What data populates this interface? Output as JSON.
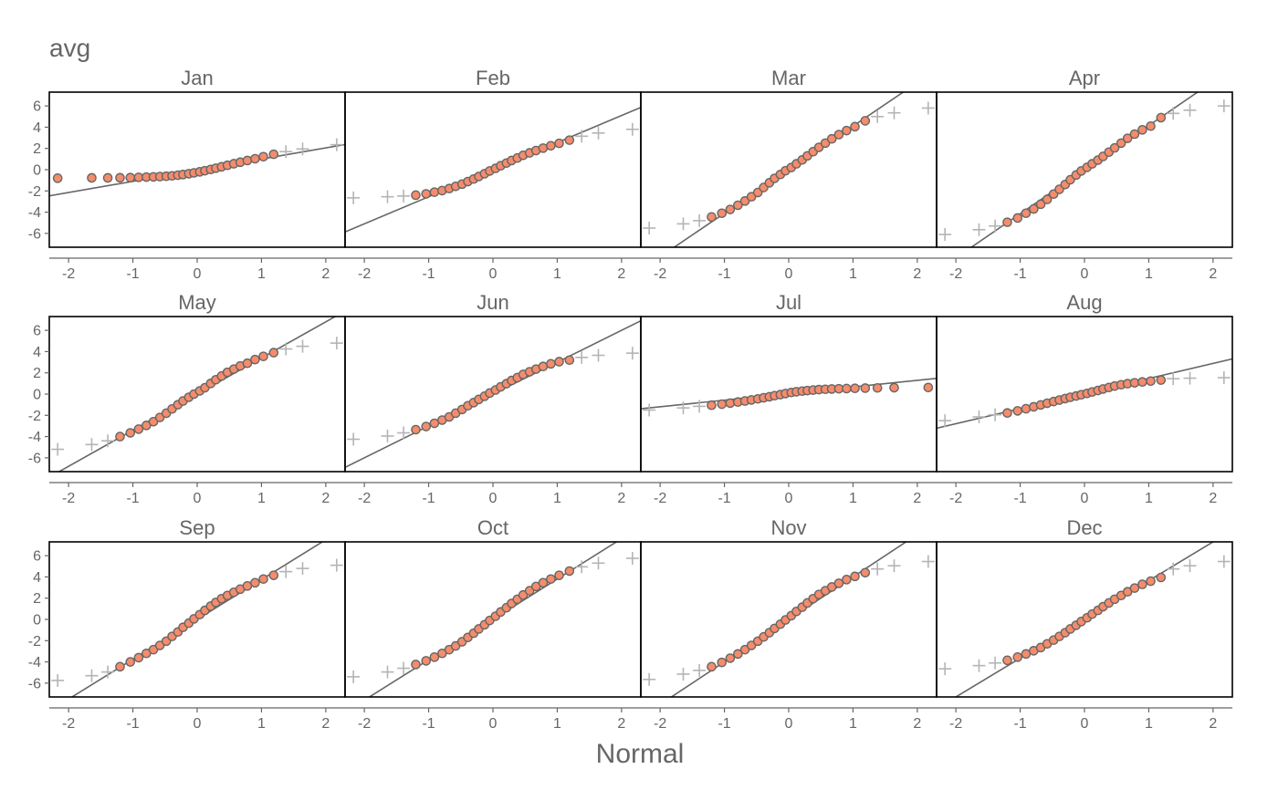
{
  "title": "avg",
  "xlabel": "Normal",
  "chart_data": {
    "type": "scatter",
    "title": "avg",
    "xlabel": "Normal",
    "ylabel": "",
    "xlim": [
      -2.3,
      2.3
    ],
    "ylim": [
      -7.3,
      7.3
    ],
    "x_ticks": [
      "-2",
      "-1",
      "0",
      "1",
      "2"
    ],
    "y_ticks": [
      "-6",
      "-4",
      "-2",
      "0",
      "2",
      "4",
      "6"
    ],
    "grid": false,
    "theoretical_quantiles": [
      -2.17,
      -1.64,
      -1.39,
      -1.2,
      -1.04,
      -0.91,
      -0.79,
      -0.68,
      -0.58,
      -0.48,
      -0.39,
      -0.3,
      -0.22,
      -0.13,
      -0.05,
      0.04,
      0.12,
      0.21,
      0.29,
      0.38,
      0.47,
      0.57,
      0.67,
      0.78,
      0.9,
      1.03,
      1.19,
      1.38,
      1.64,
      2.17
    ],
    "colors": {
      "point_fill": "#f58c6c",
      "point_stroke": "#666666",
      "cross": "#b4b4b4",
      "line": "#666666"
    },
    "panels": [
      {
        "name": "Jan",
        "line": {
          "slope": 1.05,
          "intercept": -0.05
        },
        "out_low": 0,
        "out_high": 3,
        "y": [
          -0.8,
          -0.77,
          -0.77,
          -0.76,
          -0.75,
          -0.72,
          -0.7,
          -0.68,
          -0.65,
          -0.62,
          -0.58,
          -0.52,
          -0.46,
          -0.38,
          -0.3,
          -0.2,
          -0.1,
          0.02,
          0.14,
          0.27,
          0.41,
          0.56,
          0.7,
          0.86,
          1.03,
          1.22,
          1.45,
          1.7,
          1.95,
          2.35
        ]
      },
      {
        "name": "Feb",
        "line": {
          "slope": 2.55,
          "intercept": 0.0
        },
        "out_low": 3,
        "out_high": 3,
        "y": [
          -2.65,
          -2.55,
          -2.48,
          -2.4,
          -2.28,
          -2.12,
          -1.97,
          -1.78,
          -1.57,
          -1.36,
          -1.12,
          -0.88,
          -0.64,
          -0.38,
          -0.12,
          0.12,
          0.37,
          0.62,
          0.86,
          1.1,
          1.35,
          1.58,
          1.8,
          2.03,
          2.25,
          2.48,
          2.78,
          3.15,
          3.45,
          3.8
        ]
      },
      {
        "name": "Mar",
        "line": {
          "slope": 4.1,
          "intercept": 0.0
        },
        "out_low": 3,
        "out_high": 3,
        "y": [
          -5.5,
          -5.1,
          -4.8,
          -4.45,
          -4.1,
          -3.75,
          -3.35,
          -2.95,
          -2.55,
          -2.15,
          -1.68,
          -1.23,
          -0.82,
          -0.45,
          -0.1,
          0.2,
          0.55,
          0.92,
          1.3,
          1.7,
          2.1,
          2.5,
          2.9,
          3.3,
          3.68,
          4.05,
          4.6,
          5.0,
          5.35,
          5.8
        ]
      },
      {
        "name": "Apr",
        "line": {
          "slope": 4.15,
          "intercept": 0.0
        },
        "out_low": 3,
        "out_high": 3,
        "y": [
          -6.1,
          -5.65,
          -5.3,
          -4.95,
          -4.55,
          -4.1,
          -3.7,
          -3.25,
          -2.8,
          -2.3,
          -1.85,
          -1.4,
          -0.95,
          -0.5,
          -0.12,
          0.22,
          0.55,
          0.9,
          1.25,
          1.65,
          2.05,
          2.5,
          2.95,
          3.35,
          3.75,
          4.1,
          4.9,
          5.3,
          5.6,
          6.0
        ]
      },
      {
        "name": "May",
        "line": {
          "slope": 3.4,
          "intercept": 0.0
        },
        "out_low": 3,
        "out_high": 3,
        "y": [
          -5.2,
          -4.75,
          -4.4,
          -4.0,
          -3.65,
          -3.3,
          -2.95,
          -2.6,
          -2.2,
          -1.8,
          -1.4,
          -1.0,
          -0.65,
          -0.3,
          0.0,
          0.3,
          0.6,
          1.0,
          1.35,
          1.7,
          2.05,
          2.35,
          2.65,
          2.9,
          3.25,
          3.55,
          3.9,
          4.25,
          4.5,
          4.8
        ]
      },
      {
        "name": "Jun",
        "line": {
          "slope": 3.0,
          "intercept": 0.0
        },
        "out_low": 3,
        "out_high": 3,
        "y": [
          -4.25,
          -3.95,
          -3.65,
          -3.35,
          -3.05,
          -2.75,
          -2.45,
          -2.15,
          -1.8,
          -1.45,
          -1.1,
          -0.8,
          -0.5,
          -0.2,
          0.1,
          0.38,
          0.68,
          0.98,
          1.28,
          1.55,
          1.85,
          2.1,
          2.35,
          2.6,
          2.85,
          3.05,
          3.2,
          3.45,
          3.65,
          3.85
        ]
      },
      {
        "name": "Jul",
        "line": {
          "slope": 0.62,
          "intercept": 0.05
        },
        "out_low": 3,
        "out_high": 0,
        "y": [
          -1.5,
          -1.3,
          -1.15,
          -1.05,
          -0.95,
          -0.85,
          -0.75,
          -0.65,
          -0.55,
          -0.45,
          -0.35,
          -0.25,
          -0.15,
          -0.05,
          0.05,
          0.15,
          0.22,
          0.28,
          0.33,
          0.38,
          0.42,
          0.45,
          0.48,
          0.5,
          0.52,
          0.54,
          0.56,
          0.58,
          0.6,
          0.62
        ]
      },
      {
        "name": "Aug",
        "line": {
          "slope": 1.42,
          "intercept": 0.05
        },
        "out_low": 3,
        "out_high": 3,
        "y": [
          -2.5,
          -2.15,
          -1.95,
          -1.78,
          -1.58,
          -1.38,
          -1.2,
          -1.02,
          -0.86,
          -0.7,
          -0.56,
          -0.42,
          -0.3,
          -0.18,
          -0.06,
          0.06,
          0.2,
          0.34,
          0.48,
          0.62,
          0.76,
          0.88,
          0.98,
          1.06,
          1.14,
          1.22,
          1.32,
          1.45,
          1.5,
          1.55
        ]
      },
      {
        "name": "Sep",
        "line": {
          "slope": 3.75,
          "intercept": 0.0
        },
        "out_low": 3,
        "out_high": 3,
        "y": [
          -5.75,
          -5.3,
          -4.95,
          -4.45,
          -4.0,
          -3.6,
          -3.2,
          -2.85,
          -2.45,
          -2.05,
          -1.6,
          -1.18,
          -0.75,
          -0.35,
          0.05,
          0.45,
          0.85,
          1.25,
          1.6,
          1.95,
          2.25,
          2.55,
          2.85,
          3.15,
          3.45,
          3.8,
          4.15,
          4.5,
          4.8,
          5.1
        ]
      },
      {
        "name": "Oct",
        "line": {
          "slope": 3.8,
          "intercept": 0.0
        },
        "out_low": 3,
        "out_high": 3,
        "y": [
          -5.4,
          -4.95,
          -4.6,
          -4.25,
          -3.9,
          -3.55,
          -3.2,
          -2.85,
          -2.5,
          -2.1,
          -1.7,
          -1.3,
          -0.9,
          -0.5,
          -0.1,
          0.3,
          0.7,
          1.1,
          1.5,
          1.9,
          2.3,
          2.7,
          3.1,
          3.45,
          3.8,
          4.15,
          4.55,
          4.95,
          5.3,
          5.75
        ]
      },
      {
        "name": "Nov",
        "line": {
          "slope": 4.0,
          "intercept": 0.0
        },
        "out_low": 3,
        "out_high": 3,
        "y": [
          -5.65,
          -5.15,
          -4.8,
          -4.45,
          -4.05,
          -3.65,
          -3.25,
          -2.85,
          -2.45,
          -2.05,
          -1.65,
          -1.25,
          -0.85,
          -0.45,
          -0.05,
          0.35,
          0.75,
          1.15,
          1.55,
          1.95,
          2.35,
          2.7,
          3.05,
          3.4,
          3.75,
          4.05,
          4.4,
          4.75,
          5.05,
          5.45
        ]
      },
      {
        "name": "Dec",
        "line": {
          "slope": 3.65,
          "intercept": 0.0
        },
        "out_low": 3,
        "out_high": 3,
        "y": [
          -4.65,
          -4.35,
          -4.1,
          -3.85,
          -3.55,
          -3.25,
          -2.95,
          -2.65,
          -2.3,
          -1.95,
          -1.6,
          -1.25,
          -0.9,
          -0.55,
          -0.2,
          0.15,
          0.5,
          0.85,
          1.2,
          1.55,
          1.9,
          2.25,
          2.6,
          2.95,
          3.3,
          3.6,
          3.95,
          4.75,
          5.05,
          5.45
        ]
      }
    ]
  }
}
